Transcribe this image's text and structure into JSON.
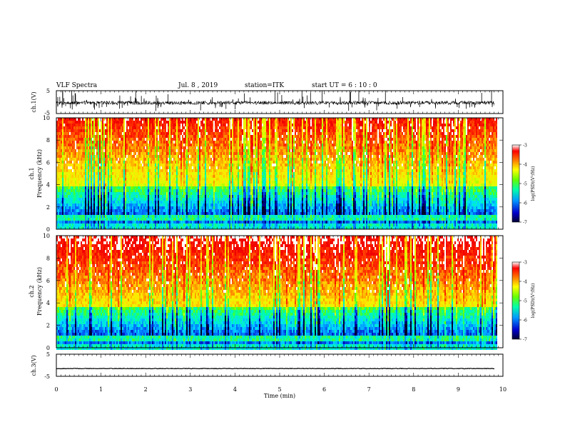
{
  "header": {
    "title": "VLF Spectra",
    "date": "Jul. 8 , 2019",
    "station": "station=ITK",
    "start": "start UT = 6 : 10 : 0"
  },
  "chart_data": [
    {
      "type": "line",
      "panel": "ch1-waveform",
      "ylabel": "ch.1(V)",
      "ylim": [
        -5,
        5
      ],
      "yticks": [
        "5",
        "-5"
      ],
      "xlim": [
        0,
        10
      ],
      "baseline": 0
    },
    {
      "type": "heatmap",
      "panel": "ch1-spectrogram",
      "ylabel": "ch.1 Frequency (kHz)",
      "ylim": [
        0,
        10
      ],
      "yticks": [
        "0",
        "2",
        "4",
        "6",
        "8",
        "10"
      ],
      "xlim": [
        0,
        10
      ],
      "data_end_min": 9.85,
      "colorbar": {
        "label": "log(PSD)(V²/Hz)",
        "ticks": [
          "-3",
          "-4",
          "-5",
          "-6",
          "-7"
        ],
        "range": [
          -7,
          -3
        ]
      }
    },
    {
      "type": "heatmap",
      "panel": "ch2-spectrogram",
      "ylabel": "ch.2 Frequency (kHz)",
      "ylim": [
        0,
        10
      ],
      "yticks": [
        "0",
        "2",
        "4",
        "6",
        "8",
        "10"
      ],
      "xlim": [
        0,
        10
      ],
      "data_end_min": 9.85,
      "colorbar": {
        "label": "log(PSD)(V²/Hz)",
        "ticks": [
          "-3",
          "-4",
          "-5",
          "-6",
          "-7"
        ],
        "range": [
          -7,
          -3
        ]
      }
    },
    {
      "type": "line",
      "panel": "ch3-waveform",
      "ylabel": "ch.3(V)",
      "ylim": [
        -5,
        5
      ],
      "yticks": [
        "5",
        "-5"
      ],
      "xlim": [
        0,
        10
      ],
      "baseline": -1.5
    }
  ],
  "xaxis": {
    "label": "Time (min)",
    "ticks": [
      "0",
      "1",
      "2",
      "3",
      "4",
      "5",
      "6",
      "7",
      "8",
      "9",
      "10"
    ]
  }
}
